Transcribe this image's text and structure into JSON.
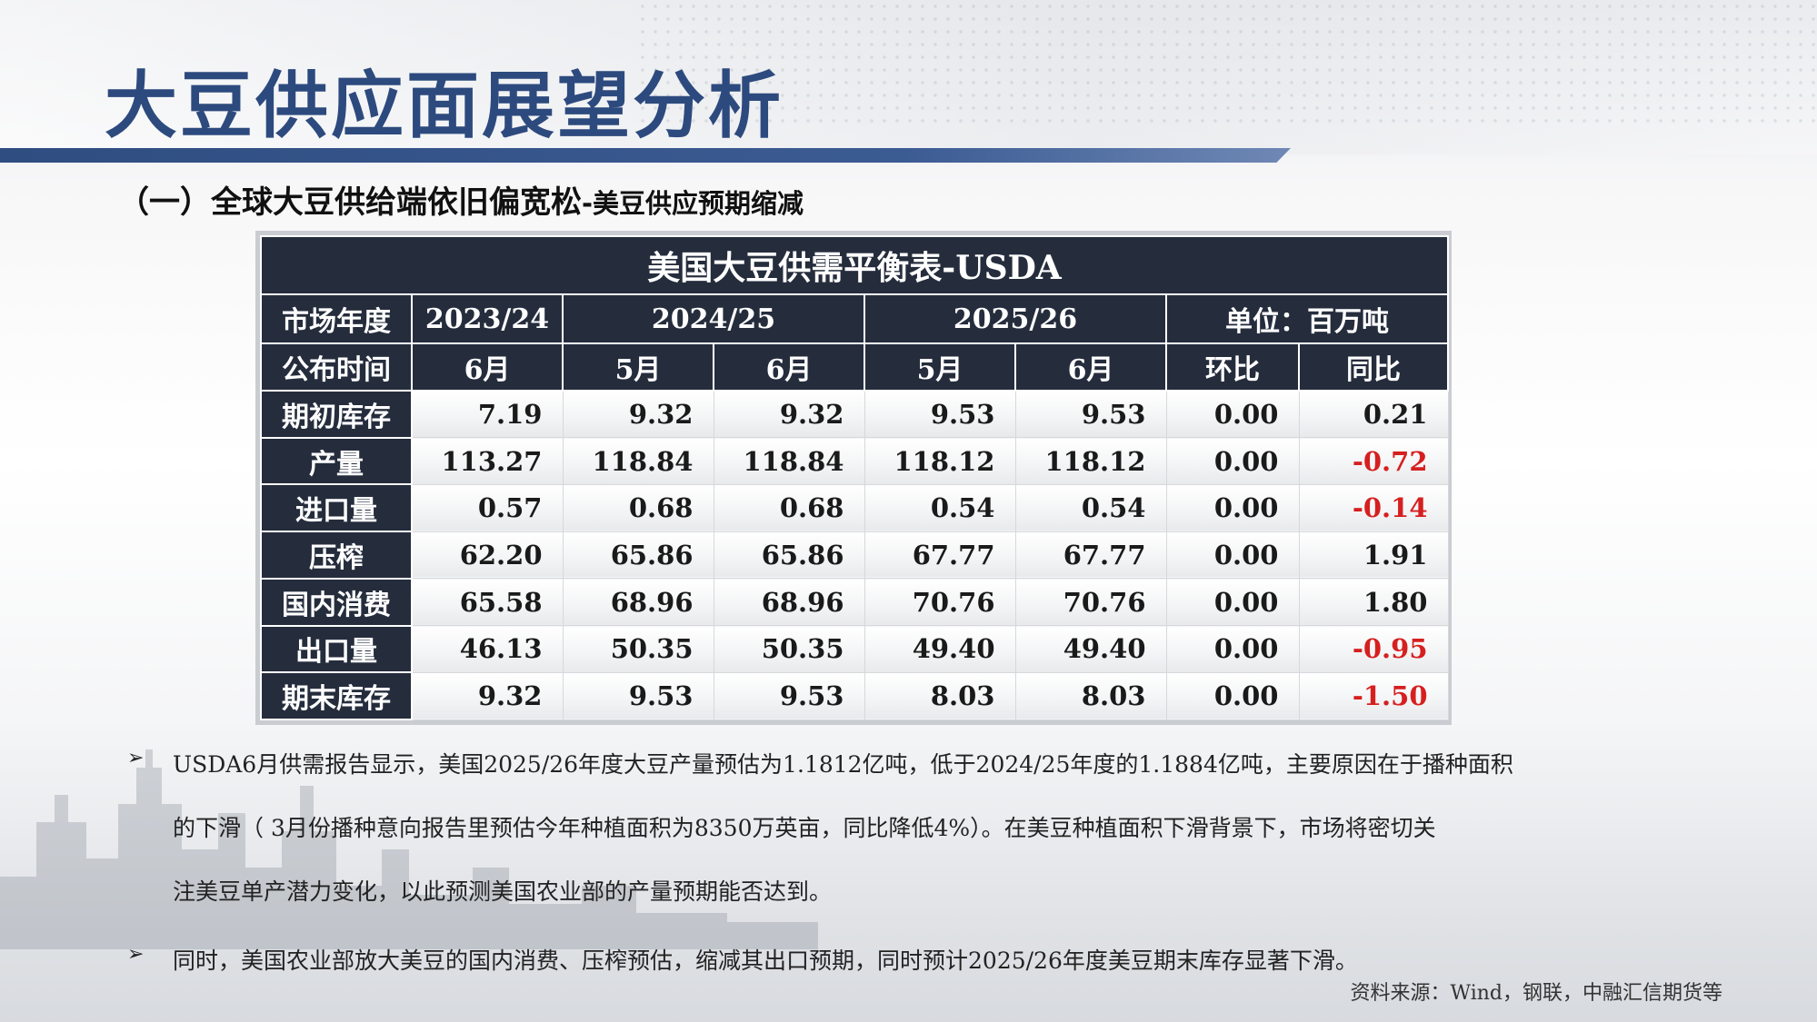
{
  "title": "大豆供应面展望分析",
  "subtitle": {
    "main": "（一）全球大豆供给端依旧偏宽松",
    "sub": "-美豆供应预期缩减"
  },
  "table": {
    "title": "美国大豆供需平衡表-USDA",
    "header1": {
      "label": "市场年度",
      "y1": "2023/24",
      "y2": "2024/25",
      "y3": "2025/26",
      "unit": "单位：百万吨"
    },
    "header2": {
      "label": "公布时间",
      "c1": "6月",
      "c2": "5月",
      "c3": "6月",
      "c4": "5月",
      "c5": "6月",
      "c6": "环比",
      "c7": "同比"
    },
    "rows": [
      {
        "label": "期初库存",
        "v": [
          "7.19",
          "9.32",
          "9.32",
          "9.53",
          "9.53",
          "0.00",
          "0.21"
        ]
      },
      {
        "label": "产量",
        "v": [
          "113.27",
          "118.84",
          "118.84",
          "118.12",
          "118.12",
          "0.00",
          "-0.72"
        ]
      },
      {
        "label": "进口量",
        "v": [
          "0.57",
          "0.68",
          "0.68",
          "0.54",
          "0.54",
          "0.00",
          "-0.14"
        ]
      },
      {
        "label": "压榨",
        "v": [
          "62.20",
          "65.86",
          "65.86",
          "67.77",
          "67.77",
          "0.00",
          "1.91"
        ]
      },
      {
        "label": "国内消费",
        "v": [
          "65.58",
          "68.96",
          "68.96",
          "70.76",
          "70.76",
          "0.00",
          "1.80"
        ]
      },
      {
        "label": "出口量",
        "v": [
          "46.13",
          "50.35",
          "50.35",
          "49.40",
          "49.40",
          "0.00",
          "-0.95"
        ]
      },
      {
        "label": "期末库存",
        "v": [
          "9.32",
          "9.53",
          "9.53",
          "8.03",
          "8.03",
          "0.00",
          "-1.50"
        ]
      }
    ],
    "negative_color": "#d61f1f",
    "header_bg": "#252d3d"
  },
  "bullets": [
    {
      "marker": "➢",
      "lines": [
        "USDA6月供需报告显示，美国2025/26年度大豆产量预估为1.1812亿吨，低于2024/25年度的1.1884亿吨，主要原因在于播种面积",
        "的下滑（ 3月份播种意向报告里预估今年种植面积为8350万英亩，同比降低4%）。在美豆种植面积下滑背景下，市场将密切关",
        "注美豆单产潜力变化，以此预测美国农业部的产量预期能否达到。"
      ]
    },
    {
      "marker": "➢",
      "lines": [
        "同时，美国农业部放大美豆的国内消费、压榨预估，缩减其出口预期，同时预计2025/26年度美豆期末库存显著下滑。"
      ]
    }
  ],
  "source": "资料来源：Wind，钢联，中融汇信期货等",
  "colors": {
    "title": "#2d4a7e",
    "accent_bar": "#2f4d80"
  }
}
